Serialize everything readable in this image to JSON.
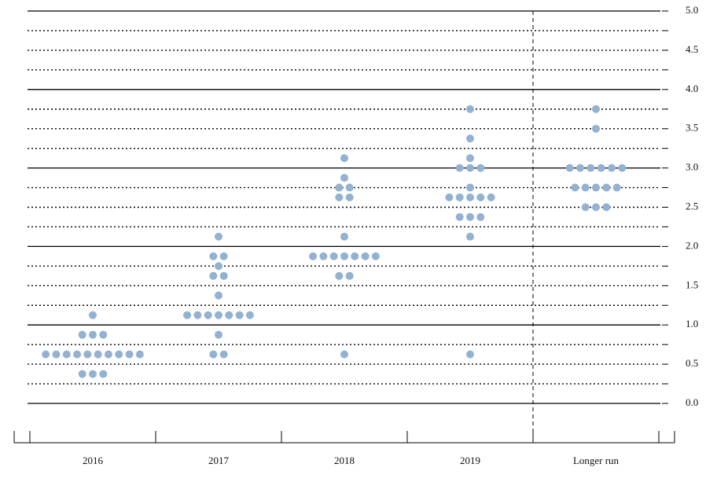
{
  "chart_data": {
    "type": "dot",
    "color": "#93b1d0",
    "categories": [
      "2016",
      "2017",
      "2018",
      "2019",
      "Longer run"
    ],
    "values": [
      [
        1.125,
        0.875,
        0.875,
        0.875,
        0.625,
        0.625,
        0.625,
        0.625,
        0.625,
        0.625,
        0.625,
        0.625,
        0.625,
        0.625,
        0.375,
        0.375,
        0.375
      ],
      [
        2.125,
        1.875,
        1.875,
        1.75,
        1.625,
        1.625,
        1.375,
        1.125,
        1.125,
        1.125,
        1.125,
        1.125,
        1.125,
        1.125,
        0.875,
        0.625,
        0.625
      ],
      [
        3.125,
        2.875,
        2.75,
        2.75,
        2.625,
        2.625,
        2.125,
        1.875,
        1.875,
        1.875,
        1.875,
        1.875,
        1.875,
        1.875,
        1.625,
        1.625,
        0.625
      ],
      [
        3.75,
        3.375,
        3.125,
        3.0,
        3.0,
        3.0,
        2.75,
        2.625,
        2.625,
        2.625,
        2.625,
        2.625,
        2.375,
        2.375,
        2.375,
        2.125,
        0.625
      ],
      [
        3.75,
        3.5,
        3.0,
        3.0,
        3.0,
        3.0,
        3.0,
        3.0,
        2.75,
        2.75,
        2.75,
        2.75,
        2.75,
        2.5,
        2.5,
        2.5
      ]
    ],
    "ylim": [
      0,
      5
    ],
    "yticks": [
      {
        "value": 0,
        "label": "0.0"
      },
      {
        "value": 0.5,
        "label": "0.5"
      },
      {
        "value": 1,
        "label": "1.0"
      },
      {
        "value": 1.5,
        "label": "1.5"
      },
      {
        "value": 2,
        "label": "2.0"
      },
      {
        "value": 2.5,
        "label": "2.5"
      },
      {
        "value": 3,
        "label": "3.0"
      },
      {
        "value": 3.5,
        "label": "3.5"
      },
      {
        "value": 4,
        "label": "4.0"
      },
      {
        "value": 4.5,
        "label": "4.5"
      },
      {
        "value": 5,
        "label": "5.0"
      }
    ],
    "minor_yticks": [
      0.25,
      0.75,
      1.25,
      1.75,
      2.25,
      2.75,
      3.25,
      3.75,
      4.25,
      4.75
    ],
    "grid": true
  }
}
